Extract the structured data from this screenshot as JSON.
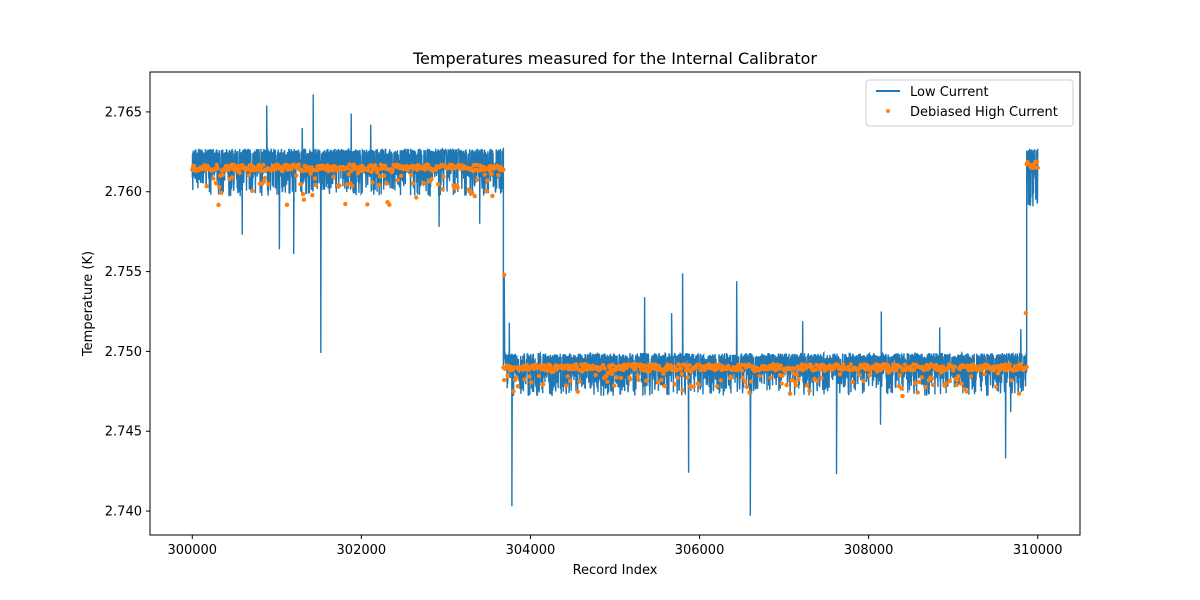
{
  "chart_data": {
    "type": "line",
    "title": "Temperatures measured for the Internal Calibrator",
    "xlabel": "Record Index",
    "ylabel": "Temperature (K)",
    "xlim": [
      299500,
      310500
    ],
    "ylim": [
      2.7385,
      2.7675
    ],
    "x_ticks": [
      300000,
      302000,
      304000,
      306000,
      308000,
      310000
    ],
    "y_ticks": [
      2.74,
      2.745,
      2.75,
      2.755,
      2.76,
      2.765
    ],
    "x_tick_labels": [
      "300000",
      "302000",
      "304000",
      "306000",
      "308000",
      "310000"
    ],
    "y_tick_labels": [
      "2.740",
      "2.745",
      "2.750",
      "2.755",
      "2.760",
      "2.765"
    ],
    "legend_position": "top-right",
    "series": [
      {
        "name": "Low Current",
        "style": "line",
        "color": "#1f77b4",
        "segments": [
          {
            "x_start": 300000,
            "x_end": 303680,
            "baseline": 2.7615,
            "low_band": 2.7597,
            "high_band": 2.7627
          },
          {
            "x_start": 303680,
            "x_end": 309870,
            "baseline": 2.7489,
            "low_band": 2.7472,
            "high_band": 2.7499
          },
          {
            "x_start": 309870,
            "x_end": 310000,
            "baseline": 2.7612,
            "low_band": 2.759,
            "high_band": 2.7627
          }
        ],
        "spikes": [
          {
            "x": 300880,
            "y": 2.7654
          },
          {
            "x": 301030,
            "y": 2.7627
          },
          {
            "x": 301430,
            "y": 2.7661
          },
          {
            "x": 301300,
            "y": 2.764
          },
          {
            "x": 301880,
            "y": 2.7649
          },
          {
            "x": 302110,
            "y": 2.7642
          },
          {
            "x": 300590,
            "y": 2.7573
          },
          {
            "x": 301030,
            "y": 2.7564
          },
          {
            "x": 301200,
            "y": 2.7561
          },
          {
            "x": 301520,
            "y": 2.7499
          },
          {
            "x": 302920,
            "y": 2.7578
          },
          {
            "x": 303400,
            "y": 2.758
          },
          {
            "x": 303690,
            "y": 2.7548
          },
          {
            "x": 303780,
            "y": 2.7403
          },
          {
            "x": 303750,
            "y": 2.7518
          },
          {
            "x": 305350,
            "y": 2.7534
          },
          {
            "x": 305670,
            "y": 2.7524
          },
          {
            "x": 305800,
            "y": 2.7549
          },
          {
            "x": 305870,
            "y": 2.7424
          },
          {
            "x": 306440,
            "y": 2.7544
          },
          {
            "x": 306600,
            "y": 2.7397
          },
          {
            "x": 307220,
            "y": 2.7519
          },
          {
            "x": 307620,
            "y": 2.7423
          },
          {
            "x": 308150,
            "y": 2.7525
          },
          {
            "x": 308140,
            "y": 2.7454
          },
          {
            "x": 308840,
            "y": 2.7515
          },
          {
            "x": 309620,
            "y": 2.7433
          },
          {
            "x": 309680,
            "y": 2.7462
          },
          {
            "x": 309800,
            "y": 2.7514
          }
        ]
      },
      {
        "name": "Debiased High Current",
        "style": "scatter",
        "color": "#ff7f0e",
        "segments": [
          {
            "x_start": 300000,
            "x_end": 303680,
            "baseline": 2.7615,
            "dip_to": 2.7591
          },
          {
            "x_start": 303680,
            "x_end": 309870,
            "baseline": 2.749,
            "dip_to": 2.7473
          },
          {
            "x_start": 309870,
            "x_end": 310000,
            "baseline": 2.7617,
            "dip_to": 2.76
          }
        ],
        "outliers": [
          {
            "x": 303690,
            "y": 2.7548
          },
          {
            "x": 309860,
            "y": 2.7524
          },
          {
            "x": 308400,
            "y": 2.7472
          }
        ]
      }
    ]
  }
}
